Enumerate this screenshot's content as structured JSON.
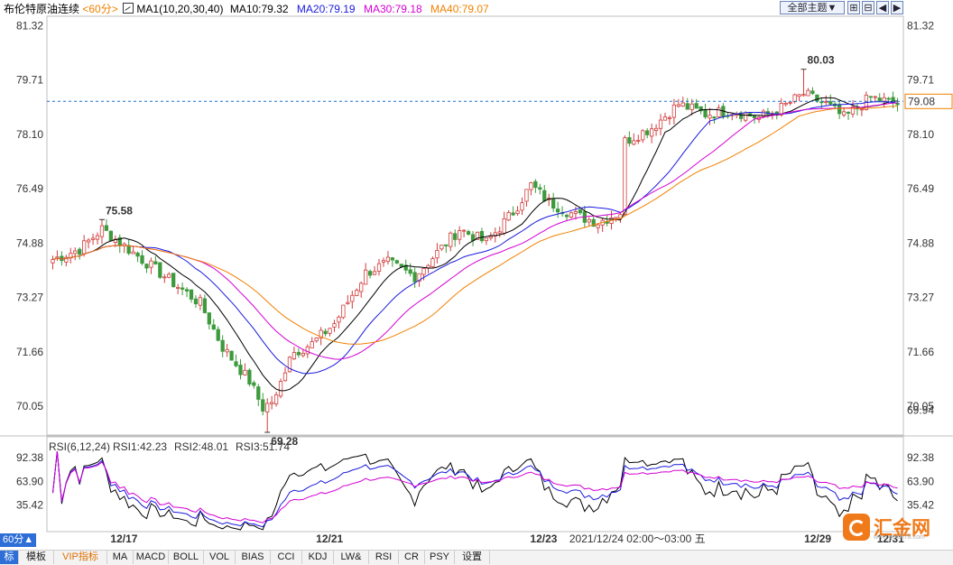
{
  "header": {
    "title": "布伦特原油连续",
    "period": "<60分>",
    "ma_name": "MA1(10,20,30,40)",
    "ma10": "MA10:79.32",
    "ma20": "MA20:79.19",
    "ma30": "MA30:79.18",
    "ma40": "MA40:79.07",
    "theme_button": "全部主题▼"
  },
  "colors": {
    "ma10": "#000000",
    "ma20": "#1a1adf",
    "ma30": "#d400d4",
    "ma40": "#f08000",
    "up": "#d23c3c",
    "down": "#3d9a3d",
    "price_line": "#1a6fd0",
    "rsi1": "#000000",
    "rsi2": "#1a1adf",
    "rsi3": "#d400d4"
  },
  "rsi_header": {
    "name": "RSI(6,12,24)",
    "rsi1": "RSI1:42.23",
    "rsi2": "RSI2:48.01",
    "rsi3": "RSI3:51.74"
  },
  "chart_data": [
    {
      "type": "candlestick",
      "title": "布伦特原油连续",
      "y_ticks": [
        "81.32",
        "79.71",
        "78.10",
        "76.49",
        "74.88",
        "73.27",
        "71.66",
        "70.05"
      ],
      "ylim": [
        69.2,
        81.6
      ],
      "x_tick_labels": [
        "12/17",
        "12/21",
        "12/23",
        "12/29",
        "12/31"
      ],
      "last_price": "79.08",
      "low_right_label": "69.94",
      "annotations": [
        {
          "label": "75.58",
          "value": 75.58,
          "kind": "high"
        },
        {
          "label": "69.28",
          "value": 69.28,
          "kind": "low"
        },
        {
          "label": "80.03",
          "value": 80.03,
          "kind": "high"
        }
      ],
      "date_tooltip": "2021/12/24 02:00～03:00 五",
      "waypoints": [
        [
          0,
          74.4
        ],
        [
          6,
          74.7
        ],
        [
          11,
          75.3
        ],
        [
          14,
          75.0
        ],
        [
          18,
          74.6
        ],
        [
          26,
          73.8
        ],
        [
          33,
          73.1
        ],
        [
          38,
          71.8
        ],
        [
          44,
          70.8
        ],
        [
          47,
          70.0
        ],
        [
          50,
          70.3
        ],
        [
          53,
          71.6
        ],
        [
          58,
          71.9
        ],
        [
          63,
          72.5
        ],
        [
          70,
          74.0
        ],
        [
          75,
          74.3
        ],
        [
          81,
          73.9
        ],
        [
          86,
          74.6
        ],
        [
          91,
          75.3
        ],
        [
          97,
          74.9
        ],
        [
          103,
          75.8
        ],
        [
          107,
          76.6
        ],
        [
          111,
          76.1
        ],
        [
          117,
          75.7
        ],
        [
          122,
          75.5
        ],
        [
          127,
          75.8
        ],
        [
          128,
          77.9
        ],
        [
          134,
          78.3
        ],
        [
          140,
          79.0
        ],
        [
          146,
          78.7
        ],
        [
          152,
          78.8
        ],
        [
          158,
          78.6
        ],
        [
          162,
          78.8
        ],
        [
          168,
          79.3
        ],
        [
          173,
          79.0
        ],
        [
          177,
          78.6
        ],
        [
          183,
          79.2
        ],
        [
          186,
          79.1
        ],
        [
          189,
          79.0
        ]
      ],
      "candle_count": 190
    },
    {
      "type": "line",
      "title": "RSI(6,12,24)",
      "y_ticks": [
        "92.38",
        "63.90",
        "35.42"
      ],
      "ylim": [
        8,
        100
      ],
      "series": [
        {
          "name": "RSI1",
          "last": 42.23
        },
        {
          "name": "RSI2",
          "last": 48.01
        },
        {
          "name": "RSI3",
          "last": 51.74
        }
      ]
    }
  ],
  "tabs": [
    "标",
    "模板",
    "VIP指标",
    "MA",
    "MACD",
    "BOLL",
    "VOL",
    "BIAS",
    "CCI",
    "KDJ",
    "LW&",
    "RSI",
    "CR",
    "PSY",
    "设置"
  ],
  "period_selector": "60分▲",
  "logo": {
    "text": "汇金网",
    "sub": "www.gold678.com"
  }
}
